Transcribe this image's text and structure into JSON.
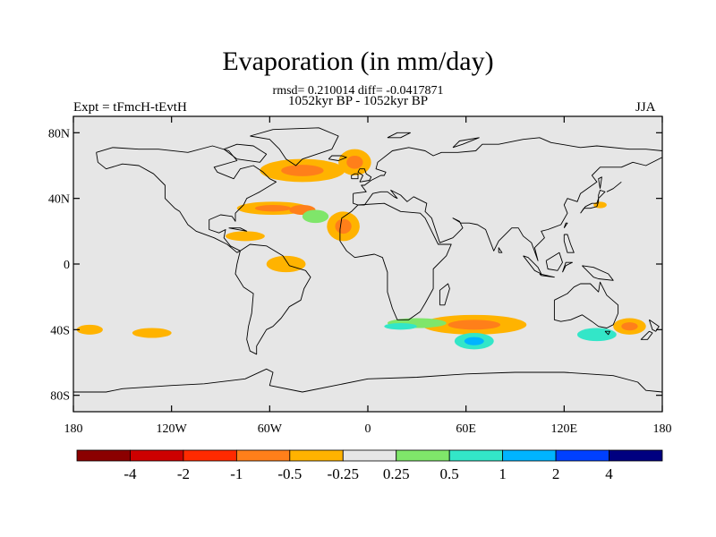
{
  "title": "Evaporation (in mm/day)",
  "stats": "rmsd= 0.210014 diff= -0.0417871",
  "period": "1052kyr BP - 1052kyr BP",
  "experiment": "Expt = tFmcH-tEvtH",
  "season": "JJA",
  "chart_data": {
    "type": "heatmap",
    "title": "Evaporation (in mm/day)",
    "projection": "cylindrical-equidistant",
    "lon_range": [
      -180,
      180
    ],
    "lat_range": [
      -90,
      90
    ],
    "lat_ticks": [
      {
        "value": 80,
        "label": "80N"
      },
      {
        "value": 40,
        "label": "40N"
      },
      {
        "value": 0,
        "label": "0"
      },
      {
        "value": -40,
        "label": "40S"
      },
      {
        "value": -80,
        "label": "80S"
      }
    ],
    "lon_ticks": [
      {
        "value": -180,
        "label": "180"
      },
      {
        "value": -120,
        "label": "120W"
      },
      {
        "value": -60,
        "label": "60W"
      },
      {
        "value": 0,
        "label": "0"
      },
      {
        "value": 60,
        "label": "60E"
      },
      {
        "value": 120,
        "label": "120E"
      },
      {
        "value": 180,
        "label": "180"
      }
    ],
    "colorbar": {
      "levels": [
        "-4",
        "-2",
        "-1",
        "-0.5",
        "-0.25",
        "0.25",
        "0.5",
        "1",
        "2",
        "4"
      ],
      "colors": [
        "#8b0000",
        "#cd0000",
        "#ff2a00",
        "#ff7f1a",
        "#ffb300",
        "#e6e6e6",
        "#7fe66a",
        "#33e6c8",
        "#00b4ff",
        "#0040ff",
        "#000080"
      ]
    },
    "regions": [
      {
        "name": "north-atlantic-subpolar",
        "lon": -40,
        "lat": 57,
        "rx": 26,
        "ry": 7,
        "level": -0.5,
        "core_level": -1
      },
      {
        "name": "iceland-region",
        "lon": -8,
        "lat": 62,
        "rx": 10,
        "ry": 8,
        "level": -0.5,
        "core_level": -1
      },
      {
        "name": "norwegian-sea",
        "lon": 8,
        "lat": 68,
        "rx": 8,
        "ry": 4,
        "level": -0.25
      },
      {
        "name": "gulf-stream",
        "lon": -58,
        "lat": 34,
        "rx": 22,
        "ry": 4,
        "level": -0.5,
        "core_level": -1
      },
      {
        "name": "gulf-stream-east",
        "lon": -40,
        "lat": 33,
        "rx": 8,
        "ry": 3,
        "level": -1
      },
      {
        "name": "subtropical-north-atlantic",
        "lon": -32,
        "lat": 29,
        "rx": 8,
        "ry": 4,
        "level": 0.25
      },
      {
        "name": "northwest-africa",
        "lon": -15,
        "lat": 23,
        "rx": 10,
        "ry": 9,
        "level": -0.5,
        "core_level": -1
      },
      {
        "name": "caribbean",
        "lon": -75,
        "lat": 17,
        "rx": 12,
        "ry": 3,
        "level": -0.5
      },
      {
        "name": "amazon-coast",
        "lon": -50,
        "lat": 0,
        "rx": 12,
        "ry": 5,
        "level": -0.5
      },
      {
        "name": "mediterranean",
        "lon": 18,
        "lat": 37,
        "rx": 12,
        "ry": 4,
        "level": -0.25
      },
      {
        "name": "arabian-peninsula",
        "lon": 48,
        "lat": 20,
        "rx": 6,
        "ry": 4,
        "level": -0.25
      },
      {
        "name": "north-pacific-east",
        "lon": 160,
        "lat": 28,
        "rx": 17,
        "ry": 6,
        "level": -0.25
      },
      {
        "name": "east-china-sea",
        "lon": 142,
        "lat": 36,
        "rx": 4,
        "ry": 2,
        "level": -0.5
      },
      {
        "name": "tropical-south-pacific",
        "lon": -148,
        "lat": -9,
        "rx": 20,
        "ry": 4,
        "level": -0.25
      },
      {
        "name": "south-pacific",
        "lon": -132,
        "lat": -42,
        "rx": 24,
        "ry": 6,
        "level": -0.25,
        "core_level": -0.5
      },
      {
        "name": "south-pacific-west",
        "lon": -170,
        "lat": -40,
        "rx": 8,
        "ry": 3,
        "level": -0.5
      },
      {
        "name": "southern-ocean-indian",
        "lon": 65,
        "lat": -37,
        "rx": 32,
        "ry": 6,
        "level": -0.5,
        "core_level": -1
      },
      {
        "name": "kerguelen-negative",
        "lon": 65,
        "lat": -47,
        "rx": 12,
        "ry": 5,
        "level": 0.5,
        "core_level": 1
      },
      {
        "name": "south-atlantic-green",
        "lon": 30,
        "lat": -36,
        "rx": 18,
        "ry": 3,
        "level": 0.25
      },
      {
        "name": "south-atlantic-cyan",
        "lon": 20,
        "lat": -38,
        "rx": 10,
        "ry": 2,
        "level": 0.5
      },
      {
        "name": "south-of-australia",
        "lon": 140,
        "lat": -43,
        "rx": 12,
        "ry": 4,
        "level": 0.5
      },
      {
        "name": "tasman-sea",
        "lon": 160,
        "lat": -38,
        "rx": 10,
        "ry": 5,
        "level": -0.5,
        "core_level": -1
      }
    ]
  }
}
